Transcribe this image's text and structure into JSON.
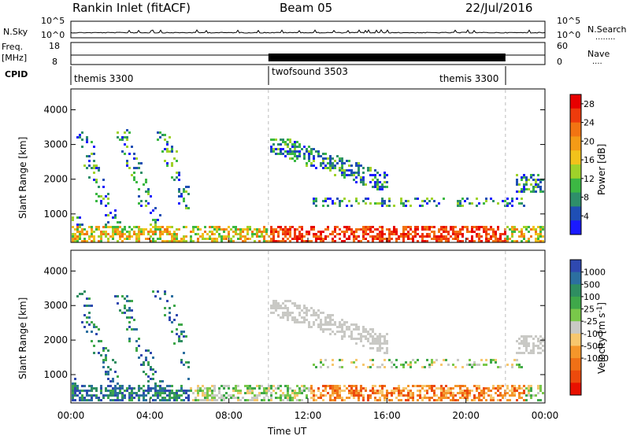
{
  "header": {
    "station": "Rankin Inlet (fitACF)",
    "beam": "Beam 05",
    "date": "22/Jul/2016"
  },
  "nsky_panel": {
    "left_label": "N.Sky",
    "left_ticks": [
      "10^5",
      "10^0"
    ],
    "right_ticks": [
      "10^5",
      "10^0"
    ],
    "right_label": "N.Search",
    "right_legend": "........"
  },
  "freq_panel": {
    "left_label_line1": "Freq.",
    "left_label_line2": "[MHz]",
    "left_ticks": [
      "18",
      "8"
    ],
    "right_ticks": [
      "60",
      "0"
    ],
    "right_label": "Nave",
    "right_legend": "...."
  },
  "cpid_panel": {
    "label": "CPID",
    "modes": [
      {
        "name": "themis 3300",
        "start_hour": 0,
        "end_hour": 10
      },
      {
        "name": "twofsound 3503",
        "start_hour": 10,
        "end_hour": 22
      },
      {
        "name": "themis 3300",
        "start_hour": 19.5,
        "end_hour": 22
      }
    ],
    "boundaries_hours": [
      10,
      22
    ]
  },
  "chart_data": [
    {
      "type": "heatmap",
      "title": "Power",
      "ylabel": "Slant Range [km]",
      "xlim": [
        0,
        24
      ],
      "ylim": [
        180,
        4600
      ],
      "yticks": [
        "1000",
        "2000",
        "3000",
        "4000"
      ],
      "colorbar": {
        "label": "Power [dB]",
        "ticks": [
          "4",
          "8",
          "12",
          "16",
          "20",
          "24",
          "28"
        ],
        "range": [
          0,
          30
        ],
        "colors": [
          "#1a1aff",
          "#1f4fb5",
          "#2e8f6a",
          "#3cb843",
          "#9fd22a",
          "#f2c21b",
          "#f49b16",
          "#f27412",
          "#ee3b0c",
          "#e80000"
        ]
      },
      "features": [
        {
          "desc_hours": [
            0,
            6
          ],
          "range_km": [
            400,
            3500
          ],
          "level": "low-mid"
        },
        {
          "desc_hours": [
            10,
            22
          ],
          "range_km": [
            200,
            800
          ],
          "level": "high"
        },
        {
          "desc_hours": [
            10,
            16
          ],
          "range_km": [
            1500,
            3100
          ],
          "level": "low"
        }
      ]
    },
    {
      "type": "heatmap",
      "title": "Velocity",
      "ylabel": "Slant Range [km]",
      "xlabel": "Time UT",
      "xlim": [
        0,
        24
      ],
      "ylim": [
        180,
        4600
      ],
      "xticks": [
        "00:00",
        "04:00",
        "08:00",
        "12:00",
        "16:00",
        "20:00",
        "00:00"
      ],
      "yticks": [
        "1000",
        "2000",
        "3000",
        "4000"
      ],
      "colorbar": {
        "label": "Velocity [m s^-1]",
        "ticks": [
          "1000",
          "500",
          "100",
          "25",
          "-25",
          "-100",
          "-500",
          "-1000"
        ],
        "colors": [
          "#2f49b0",
          "#2c6fa0",
          "#2f8e61",
          "#3fa84a",
          "#79c84a",
          "#c9c9c5",
          "#f7c76e",
          "#f5962a",
          "#f07016",
          "#ec4a0c",
          "#e81000"
        ]
      }
    }
  ],
  "colors": {
    "frame": "#000000",
    "ground_scatter": "#c9c9c5"
  }
}
